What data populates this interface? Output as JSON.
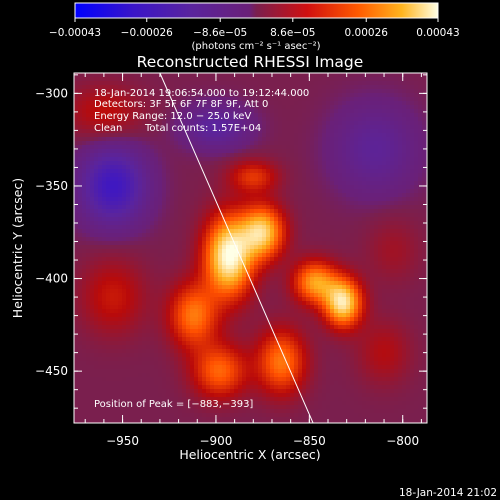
{
  "chart_data": {
    "type": "heatmap",
    "title": "Reconstructed RHESSI Image",
    "xlabel": "Heliocentric X (arcsec)",
    "ylabel": "Heliocentric Y (arcsec)",
    "xlim": [
      -976,
      -787
    ],
    "ylim": [
      -478,
      -289
    ],
    "x_ticks": [
      {
        "value": -950,
        "label": "−950"
      },
      {
        "value": -900,
        "label": "−900"
      },
      {
        "value": -850,
        "label": "−850"
      },
      {
        "value": -800,
        "label": "−800"
      }
    ],
    "y_ticks": [
      {
        "value": -300,
        "label": "−300"
      },
      {
        "value": -350,
        "label": "−350"
      },
      {
        "value": -400,
        "label": "−400"
      },
      {
        "value": -450,
        "label": "−450"
      }
    ],
    "colorbar": {
      "range": [
        -0.00043,
        0.00043
      ],
      "ticks": [
        {
          "value": -0.00043,
          "label": "−0.00043"
        },
        {
          "value": -0.00026,
          "label": "−0.00026"
        },
        {
          "value": -8.6e-05,
          "label": "−8.6e−05"
        },
        {
          "value": 8.6e-05,
          "label": "8.6e−05"
        },
        {
          "value": 0.00026,
          "label": "0.00026"
        },
        {
          "value": 0.00043,
          "label": "0.00043"
        }
      ],
      "unit_label": "(photons cm⁻² s⁻¹ asec⁻²)"
    },
    "annotations": {
      "time_range": "18-Jan-2014 19:06:54.000 to 19:12:44.000",
      "detectors": "Detectors: 3F 5F 6F 7F 8F 9F, Att 0",
      "energy_range": "Energy Range: 12.0 − 25.0 keV",
      "method": "Clean",
      "total_counts": "Total counts: 1.57E+04",
      "peak_position": "Position of Peak = [−883,−393]"
    },
    "limb_line": {
      "points": [
        [
          -930,
          -289
        ],
        [
          -848,
          -478
        ]
      ]
    },
    "sources": [
      {
        "x": -893,
        "y": -388,
        "intensity": 1.0,
        "sx": 9,
        "sy": 15
      },
      {
        "x": -875,
        "y": -375,
        "intensity": 0.8,
        "sx": 8,
        "sy": 10
      },
      {
        "x": -832,
        "y": -413,
        "intensity": 0.9,
        "sx": 7,
        "sy": 9
      },
      {
        "x": -847,
        "y": -402,
        "intensity": 0.65,
        "sx": 8,
        "sy": 8
      },
      {
        "x": -880,
        "y": -345,
        "intensity": 0.35,
        "sx": 9,
        "sy": 6
      },
      {
        "x": -912,
        "y": -420,
        "intensity": 0.55,
        "sx": 9,
        "sy": 12
      },
      {
        "x": -898,
        "y": -450,
        "intensity": 0.5,
        "sx": 10,
        "sy": 10
      },
      {
        "x": -865,
        "y": -445,
        "intensity": 0.55,
        "sx": 9,
        "sy": 12
      },
      {
        "x": -955,
        "y": -410,
        "intensity": 0.25,
        "sx": 12,
        "sy": 14
      },
      {
        "x": -960,
        "y": -310,
        "intensity": 0.22,
        "sx": 14,
        "sy": 10
      },
      {
        "x": -810,
        "y": -440,
        "intensity": 0.18,
        "sx": 10,
        "sy": 12
      },
      {
        "x": -805,
        "y": -385,
        "intensity": 0.12,
        "sx": 10,
        "sy": 12
      },
      {
        "x": -955,
        "y": -350,
        "intensity": -0.55,
        "sx": 12,
        "sy": 14
      },
      {
        "x": -900,
        "y": -318,
        "intensity": -0.3,
        "sx": 12,
        "sy": 8
      },
      {
        "x": -815,
        "y": -330,
        "intensity": -0.25,
        "sx": 15,
        "sy": 16
      }
    ]
  },
  "footer": {
    "timestamp": "18-Jan-2014 21:02"
  }
}
